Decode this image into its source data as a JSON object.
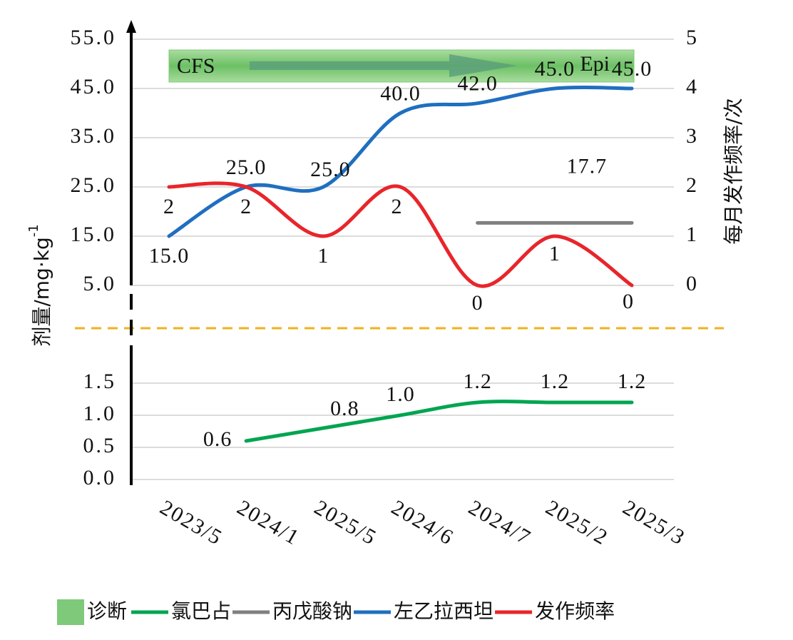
{
  "chart_data": [
    {
      "type": "line",
      "y_label": "剂量/mg·kg",
      "y_label_sup": "-1",
      "y2_label": "每月发作频率/次",
      "diagnosis": {
        "name": "诊断",
        "start": "CFS",
        "end": "Epi",
        "color": "#7ec97a"
      },
      "ylim": [
        5,
        55
      ],
      "yticks": [
        {
          "value": 5,
          "label": "5.0"
        },
        {
          "value": 15,
          "label": "15.0"
        },
        {
          "value": 25,
          "label": "25.0"
        },
        {
          "value": 35,
          "label": "35.0"
        },
        {
          "value": 45,
          "label": "45.0"
        },
        {
          "value": 55,
          "label": "55.0"
        }
      ],
      "y2lim": [
        0,
        5
      ],
      "y2ticks": [
        0,
        1,
        2,
        3,
        4,
        5
      ],
      "grid": true,
      "series": [
        {
          "name": "丙戊酸钠",
          "color": "#808080",
          "smooth": false,
          "values": [
            null,
            null,
            null,
            null,
            17.7,
            17.7,
            17.7
          ],
          "value_labels": [
            null,
            null,
            null,
            null,
            null,
            "17.7",
            null
          ]
        },
        {
          "name": "左乙拉西坦",
          "color": "#1f6fc0",
          "smooth": true,
          "values": [
            15,
            25,
            25,
            40,
            42,
            45,
            45
          ],
          "value_labels": [
            "15.0",
            "25.0",
            "25.0",
            "40.0",
            "42.0",
            "45.0",
            "45.0"
          ]
        },
        {
          "name": "发作频率",
          "color": "#e8252b",
          "smooth": true,
          "axis": "y2",
          "values": [
            2,
            2,
            1,
            2,
            0,
            1,
            0
          ]
        }
      ]
    },
    {
      "type": "line",
      "categories": [
        "2023/5",
        "2024/1",
        "2025/5",
        "2024/6",
        "2024/7",
        "2025/2",
        "2025/3"
      ],
      "ylim": [
        0,
        1.7
      ],
      "yticks": [
        {
          "value": 0,
          "label": "0.0"
        },
        {
          "value": 0.5,
          "label": "0.5"
        },
        {
          "value": 1,
          "label": "1.0"
        },
        {
          "value": 1.5,
          "label": "1.5"
        }
      ],
      "grid": true,
      "series": [
        {
          "name": "氯巴占",
          "color": "#00a550",
          "smooth": true,
          "values": [
            null,
            0.6,
            0.8,
            1.0,
            1.2,
            1.2,
            1.2
          ],
          "value_labels": [
            null,
            "0.6",
            "0.8",
            "1.0",
            "1.2",
            "1.2",
            "1.2"
          ]
        }
      ]
    }
  ]
}
